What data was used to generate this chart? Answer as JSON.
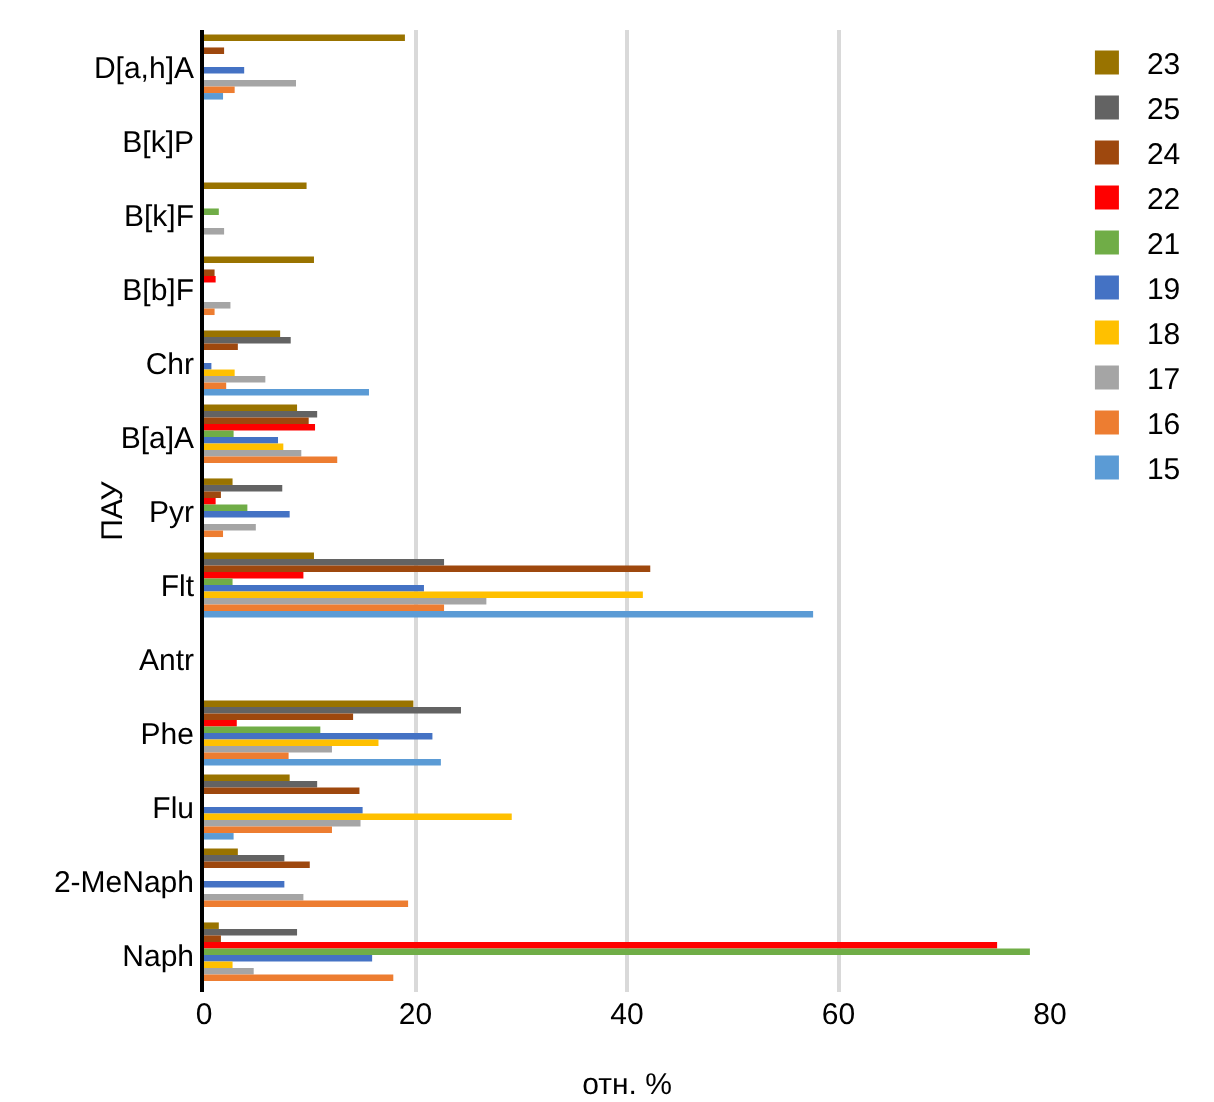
{
  "chart_data": {
    "type": "bar",
    "orientation": "horizontal",
    "xlabel": "отн. %",
    "ylabel": "ПАУ",
    "categories": [
      "D[a,h]A",
      "B[k]P",
      "B[k]F",
      "B[b]F",
      "Chr",
      "B[a]A",
      "Pyr",
      "Flt",
      "Antr",
      "Phe",
      "Flu",
      "2-MeNaph",
      "Naph"
    ],
    "series": [
      {
        "name": "23",
        "color": "#997300",
        "values": [
          19.0,
          0,
          9.7,
          10.4,
          7.2,
          8.8,
          2.7,
          10.4,
          0,
          19.8,
          8.1,
          3.2,
          1.4
        ]
      },
      {
        "name": "25",
        "color": "#636363",
        "values": [
          0,
          0,
          0,
          0,
          8.2,
          10.7,
          7.4,
          22.7,
          0,
          24.3,
          10.7,
          7.6,
          8.8
        ]
      },
      {
        "name": "24",
        "color": "#9e480e",
        "values": [
          1.9,
          0,
          0,
          1.0,
          3.2,
          9.9,
          1.6,
          42.2,
          0,
          14.1,
          14.7,
          10.0,
          1.6
        ]
      },
      {
        "name": "22",
        "color": "#ff0000",
        "values": [
          0,
          0,
          0,
          1.1,
          0,
          10.5,
          1.1,
          9.4,
          0,
          3.1,
          0,
          0,
          75.0
        ]
      },
      {
        "name": "21",
        "color": "#70ad47",
        "values": [
          0,
          0,
          1.4,
          0,
          0,
          2.8,
          4.1,
          2.7,
          0,
          11.0,
          0,
          0,
          78.1
        ]
      },
      {
        "name": "19",
        "color": "#4472c4",
        "values": [
          3.8,
          0,
          0,
          0,
          0.7,
          7.0,
          8.1,
          20.8,
          0,
          21.6,
          15.0,
          7.6,
          15.9
        ]
      },
      {
        "name": "18",
        "color": "#ffc000",
        "values": [
          0,
          0,
          0,
          0,
          2.9,
          7.5,
          0,
          41.5,
          0,
          16.5,
          29.1,
          0,
          2.7
        ]
      },
      {
        "name": "17",
        "color": "#a5a5a5",
        "values": [
          8.7,
          0,
          1.9,
          2.5,
          5.8,
          9.2,
          4.9,
          26.7,
          0,
          12.1,
          14.8,
          9.4,
          4.7
        ]
      },
      {
        "name": "16",
        "color": "#ed7d31",
        "values": [
          2.9,
          0,
          0,
          1.0,
          2.1,
          12.6,
          1.8,
          22.7,
          0,
          8.0,
          12.1,
          19.3,
          17.9
        ]
      },
      {
        "name": "15",
        "color": "#5b9bd5",
        "values": [
          1.8,
          0,
          0,
          0,
          15.6,
          0,
          0,
          57.6,
          0,
          22.4,
          2.8,
          0,
          0
        ]
      }
    ],
    "xlim": [
      0,
      80
    ],
    "xticks": [
      0,
      20,
      40,
      60,
      80
    ],
    "grid": "x",
    "legend": "right"
  }
}
